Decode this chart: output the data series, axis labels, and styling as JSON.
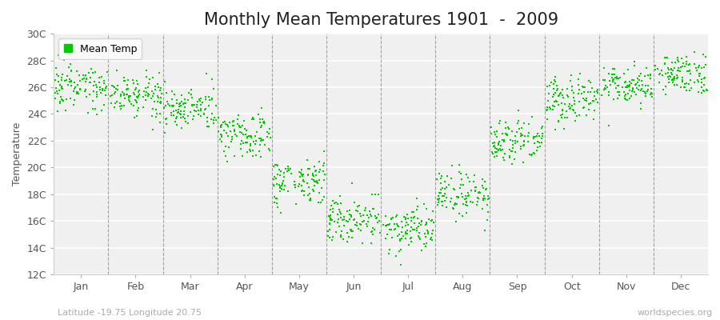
{
  "title": "Monthly Mean Temperatures 1901  -  2009",
  "ylabel": "Temperature",
  "subtitle": "Latitude -19.75 Longitude 20.75",
  "watermark": "worldspecies.org",
  "month_labels": [
    "Jan",
    "Feb",
    "Mar",
    "Apr",
    "May",
    "Jun",
    "Jul",
    "Aug",
    "Sep",
    "Oct",
    "Nov",
    "Dec"
  ],
  "month_positions": [
    0.5,
    1.5,
    2.5,
    3.5,
    4.5,
    5.5,
    6.5,
    7.5,
    8.5,
    9.5,
    10.5,
    11.5
  ],
  "dashed_lines": [
    1.0,
    2.0,
    3.0,
    4.0,
    5.0,
    6.0,
    7.0,
    8.0,
    9.0,
    10.0,
    11.0
  ],
  "ylim": [
    12,
    30
  ],
  "xlim": [
    0,
    12
  ],
  "yticks": [
    12,
    14,
    16,
    18,
    20,
    22,
    24,
    26,
    28,
    30
  ],
  "ytick_labels": [
    "12C",
    "14C",
    "16C",
    "18C",
    "20C",
    "22C",
    "24C",
    "26C",
    "28C",
    "30C"
  ],
  "monthly_means": [
    26.0,
    25.5,
    24.5,
    22.5,
    19.0,
    16.0,
    15.5,
    18.0,
    22.0,
    25.0,
    26.0,
    27.0
  ],
  "monthly_stds": [
    0.75,
    0.75,
    0.85,
    0.85,
    0.85,
    0.85,
    0.85,
    0.85,
    0.85,
    0.85,
    0.75,
    0.75
  ],
  "years": 109,
  "dot_color": "#00cc00",
  "dot_size": 3,
  "legend_label": "Mean Temp",
  "bg_color": "#ffffff",
  "plot_bg_color": "#f0f0f0",
  "title_fontsize": 15,
  "label_fontsize": 9,
  "tick_fontsize": 9
}
